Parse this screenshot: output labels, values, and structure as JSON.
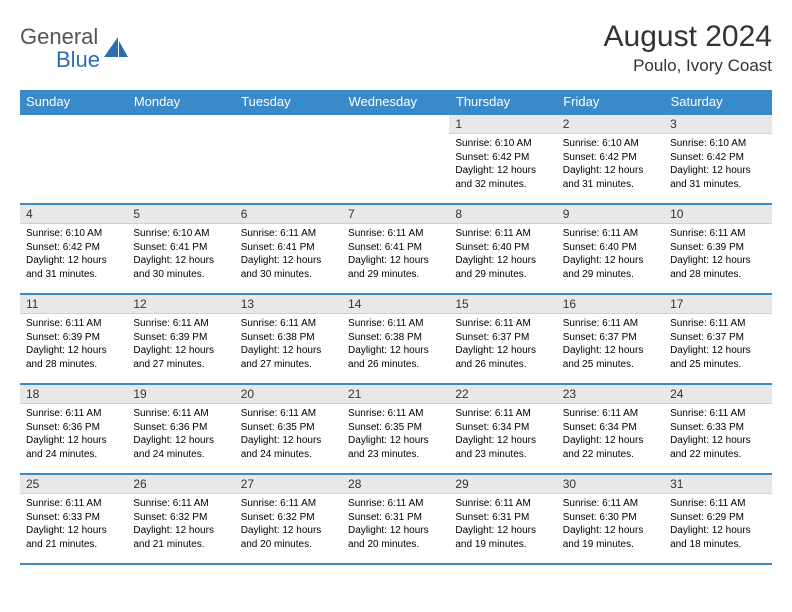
{
  "brand": {
    "part1": "General",
    "part2": "Blue"
  },
  "title": "August 2024",
  "location": "Poulo, Ivory Coast",
  "dayNames": [
    "Sunday",
    "Monday",
    "Tuesday",
    "Wednesday",
    "Thursday",
    "Friday",
    "Saturday"
  ],
  "colors": {
    "headerBg": "#3a89c9",
    "headerText": "#ffffff",
    "dayNumBg": "#e8e8e8",
    "borderRow": "#3a89c9",
    "brandGray": "#555555",
    "brandBlue": "#2c6db3"
  },
  "layout": {
    "startOffset": 4,
    "weeks": 5,
    "cols": 7
  },
  "days": [
    {
      "n": 1,
      "sr": "6:10 AM",
      "ss": "6:42 PM",
      "dl": "12 hours and 32 minutes."
    },
    {
      "n": 2,
      "sr": "6:10 AM",
      "ss": "6:42 PM",
      "dl": "12 hours and 31 minutes."
    },
    {
      "n": 3,
      "sr": "6:10 AM",
      "ss": "6:42 PM",
      "dl": "12 hours and 31 minutes."
    },
    {
      "n": 4,
      "sr": "6:10 AM",
      "ss": "6:42 PM",
      "dl": "12 hours and 31 minutes."
    },
    {
      "n": 5,
      "sr": "6:10 AM",
      "ss": "6:41 PM",
      "dl": "12 hours and 30 minutes."
    },
    {
      "n": 6,
      "sr": "6:11 AM",
      "ss": "6:41 PM",
      "dl": "12 hours and 30 minutes."
    },
    {
      "n": 7,
      "sr": "6:11 AM",
      "ss": "6:41 PM",
      "dl": "12 hours and 29 minutes."
    },
    {
      "n": 8,
      "sr": "6:11 AM",
      "ss": "6:40 PM",
      "dl": "12 hours and 29 minutes."
    },
    {
      "n": 9,
      "sr": "6:11 AM",
      "ss": "6:40 PM",
      "dl": "12 hours and 29 minutes."
    },
    {
      "n": 10,
      "sr": "6:11 AM",
      "ss": "6:39 PM",
      "dl": "12 hours and 28 minutes."
    },
    {
      "n": 11,
      "sr": "6:11 AM",
      "ss": "6:39 PM",
      "dl": "12 hours and 28 minutes."
    },
    {
      "n": 12,
      "sr": "6:11 AM",
      "ss": "6:39 PM",
      "dl": "12 hours and 27 minutes."
    },
    {
      "n": 13,
      "sr": "6:11 AM",
      "ss": "6:38 PM",
      "dl": "12 hours and 27 minutes."
    },
    {
      "n": 14,
      "sr": "6:11 AM",
      "ss": "6:38 PM",
      "dl": "12 hours and 26 minutes."
    },
    {
      "n": 15,
      "sr": "6:11 AM",
      "ss": "6:37 PM",
      "dl": "12 hours and 26 minutes."
    },
    {
      "n": 16,
      "sr": "6:11 AM",
      "ss": "6:37 PM",
      "dl": "12 hours and 25 minutes."
    },
    {
      "n": 17,
      "sr": "6:11 AM",
      "ss": "6:37 PM",
      "dl": "12 hours and 25 minutes."
    },
    {
      "n": 18,
      "sr": "6:11 AM",
      "ss": "6:36 PM",
      "dl": "12 hours and 24 minutes."
    },
    {
      "n": 19,
      "sr": "6:11 AM",
      "ss": "6:36 PM",
      "dl": "12 hours and 24 minutes."
    },
    {
      "n": 20,
      "sr": "6:11 AM",
      "ss": "6:35 PM",
      "dl": "12 hours and 24 minutes."
    },
    {
      "n": 21,
      "sr": "6:11 AM",
      "ss": "6:35 PM",
      "dl": "12 hours and 23 minutes."
    },
    {
      "n": 22,
      "sr": "6:11 AM",
      "ss": "6:34 PM",
      "dl": "12 hours and 23 minutes."
    },
    {
      "n": 23,
      "sr": "6:11 AM",
      "ss": "6:34 PM",
      "dl": "12 hours and 22 minutes."
    },
    {
      "n": 24,
      "sr": "6:11 AM",
      "ss": "6:33 PM",
      "dl": "12 hours and 22 minutes."
    },
    {
      "n": 25,
      "sr": "6:11 AM",
      "ss": "6:33 PM",
      "dl": "12 hours and 21 minutes."
    },
    {
      "n": 26,
      "sr": "6:11 AM",
      "ss": "6:32 PM",
      "dl": "12 hours and 21 minutes."
    },
    {
      "n": 27,
      "sr": "6:11 AM",
      "ss": "6:32 PM",
      "dl": "12 hours and 20 minutes."
    },
    {
      "n": 28,
      "sr": "6:11 AM",
      "ss": "6:31 PM",
      "dl": "12 hours and 20 minutes."
    },
    {
      "n": 29,
      "sr": "6:11 AM",
      "ss": "6:31 PM",
      "dl": "12 hours and 19 minutes."
    },
    {
      "n": 30,
      "sr": "6:11 AM",
      "ss": "6:30 PM",
      "dl": "12 hours and 19 minutes."
    },
    {
      "n": 31,
      "sr": "6:11 AM",
      "ss": "6:29 PM",
      "dl": "12 hours and 18 minutes."
    }
  ]
}
